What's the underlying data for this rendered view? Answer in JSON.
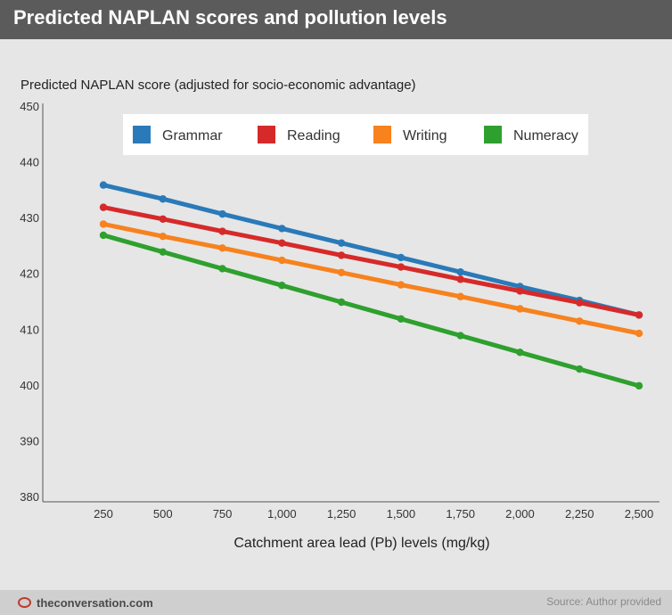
{
  "header": {
    "title": "Predicted NAPLAN scores and pollution levels"
  },
  "footer": {
    "brand": "theconversation.com",
    "source": "Source: Author provided"
  },
  "chart_data": {
    "type": "line",
    "ylabel": "Predicted NAPLAN score (adjusted for socio-economic advantage)",
    "xlabel": "Catchment area lead (Pb) levels (mg/kg)",
    "x": [
      250,
      500,
      750,
      1000,
      1250,
      1500,
      1750,
      2000,
      2250,
      2500
    ],
    "x_tick_labels": [
      "250",
      "500",
      "750",
      "1,000",
      "1,250",
      "1,500",
      "1,750",
      "2,000",
      "2,250",
      "2,500"
    ],
    "ylim": [
      380,
      450
    ],
    "y_ticks": [
      380,
      390,
      400,
      410,
      420,
      430,
      440,
      450
    ],
    "legend_position": "top",
    "grid": false,
    "series": [
      {
        "name": "Grammar",
        "color": "#2a7ab9",
        "values": [
          436,
          433.5,
          430.8,
          428.2,
          425.6,
          423,
          420.4,
          417.8,
          415.3,
          412.7
        ]
      },
      {
        "name": "Reading",
        "color": "#d62a2a",
        "values": [
          432,
          429.9,
          427.7,
          425.6,
          423.4,
          421.3,
          419.1,
          417,
          414.9,
          412.7
        ]
      },
      {
        "name": "Writing",
        "color": "#f7821e",
        "values": [
          429,
          426.8,
          424.7,
          422.5,
          420.3,
          418.1,
          416,
          413.8,
          411.6,
          409.4
        ]
      },
      {
        "name": "Numeracy",
        "color": "#2ea02e",
        "values": [
          427,
          424,
          421,
          418,
          415,
          412,
          409,
          406,
          403,
          400
        ]
      }
    ]
  }
}
